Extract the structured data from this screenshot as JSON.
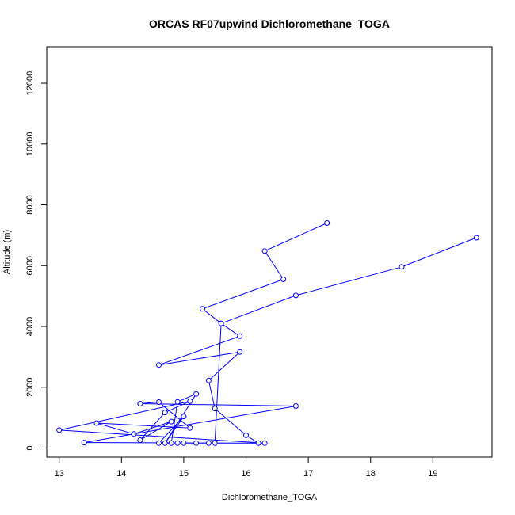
{
  "chart_data": {
    "type": "line",
    "title": "ORCAS RF07upwind Dichloromethane_TOGA",
    "xlabel": "Dichloromethane_TOGA",
    "ylabel": "Altitude (m)",
    "xlim": [
      12.8,
      19.95
    ],
    "ylim": [
      -300,
      13200
    ],
    "xticks": [
      13,
      14,
      15,
      16,
      17,
      18,
      19
    ],
    "yticks": [
      0,
      2000,
      4000,
      6000,
      8000,
      10000,
      12000
    ],
    "grid": false,
    "line_color": "#0000ff",
    "series": [
      {
        "points": [
          {
            "x": 17.3,
            "y": 7400
          },
          {
            "x": 16.3,
            "y": 6480
          },
          {
            "x": 16.6,
            "y": 5550
          },
          {
            "x": 15.3,
            "y": 4580
          },
          {
            "x": 15.6,
            "y": 4100
          },
          {
            "x": 15.9,
            "y": 3680
          },
          {
            "x": 14.6,
            "y": 2730
          },
          {
            "x": 15.9,
            "y": 3160
          },
          {
            "x": 15.4,
            "y": 2220
          },
          {
            "x": 15.5,
            "y": 1300
          },
          {
            "x": 16.0,
            "y": 420
          },
          {
            "x": 16.2,
            "y": 160
          },
          {
            "x": 13.4,
            "y": 180
          },
          {
            "x": 16.8,
            "y": 1380
          },
          {
            "x": 14.3,
            "y": 1460
          },
          {
            "x": 14.6,
            "y": 1510
          },
          {
            "x": 15.1,
            "y": 660
          },
          {
            "x": 13.6,
            "y": 820
          },
          {
            "x": 14.2,
            "y": 460
          },
          {
            "x": 14.8,
            "y": 870
          },
          {
            "x": 14.3,
            "y": 260
          },
          {
            "x": 14.7,
            "y": 1170
          },
          {
            "x": 15.1,
            "y": 1540
          },
          {
            "x": 13.0,
            "y": 590
          },
          {
            "x": 16.3,
            "y": 160
          },
          {
            "x": 14.6,
            "y": 160
          },
          {
            "x": 15.0,
            "y": 1040
          },
          {
            "x": 14.7,
            "y": 160
          },
          {
            "x": 15.2,
            "y": 1780
          },
          {
            "x": 14.9,
            "y": 1520
          },
          {
            "x": 14.8,
            "y": 160
          },
          {
            "x": 14.9,
            "y": 160
          },
          {
            "x": 15.0,
            "y": 160
          },
          {
            "x": 15.2,
            "y": 160
          },
          {
            "x": 15.4,
            "y": 160
          },
          {
            "x": 15.5,
            "y": 160
          },
          {
            "x": 15.6,
            "y": 4100
          },
          {
            "x": 16.8,
            "y": 5020
          },
          {
            "x": 18.5,
            "y": 5960
          },
          {
            "x": 19.7,
            "y": 6920
          }
        ]
      }
    ]
  }
}
